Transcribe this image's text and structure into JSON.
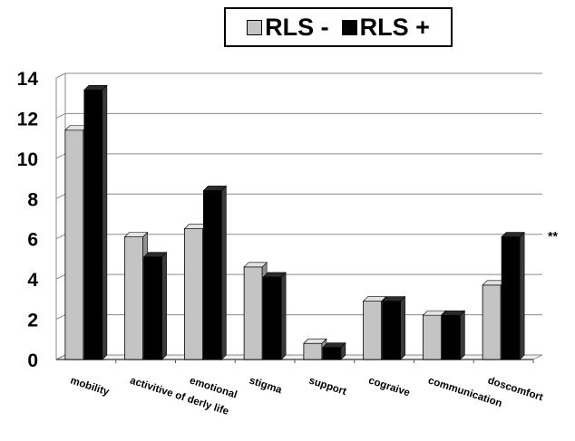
{
  "colors": {
    "rls_neg": "#c4c4c4",
    "rls_neg_side": "#8f8f8f",
    "rls_neg_top": "#e2e2e2",
    "rls_pos": "#000000",
    "rls_pos_side": "#3a3a3a",
    "rls_pos_top": "#2a2a2a",
    "grid": "#8a8a8a"
  },
  "chart_data": {
    "type": "bar",
    "categories": [
      "mobility",
      "activitive of derly life",
      "emotional",
      "stigma",
      "support",
      "cograive",
      "communication",
      "doscomfort"
    ],
    "series": [
      {
        "name": "RLS -",
        "values": [
          11.4,
          6.1,
          6.5,
          4.6,
          0.8,
          2.9,
          2.2,
          3.7
        ]
      },
      {
        "name": "RLS +",
        "values": [
          13.4,
          5.1,
          8.4,
          4.1,
          0.6,
          2.9,
          2.2,
          6.1
        ]
      }
    ],
    "yticks": [
      0,
      2,
      4,
      6,
      8,
      10,
      12,
      14
    ],
    "ylim": [
      0,
      14
    ],
    "grid": true,
    "legend_position": "top",
    "annotation": {
      "text": "**",
      "category": "doscomfort",
      "y": 6.2
    }
  }
}
